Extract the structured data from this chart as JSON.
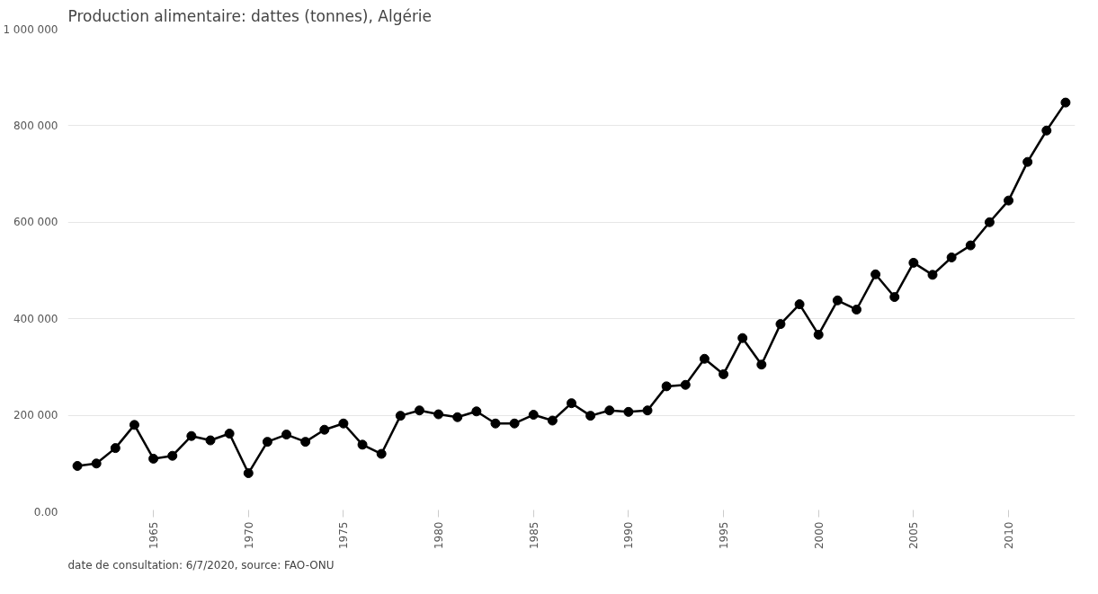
{
  "chart_data": {
    "type": "line",
    "title": "Production alimentaire: dattes (tonnes), Algérie",
    "x": [
      1961,
      1962,
      1963,
      1964,
      1965,
      1966,
      1967,
      1968,
      1969,
      1970,
      1971,
      1972,
      1973,
      1974,
      1975,
      1976,
      1977,
      1978,
      1979,
      1980,
      1981,
      1982,
      1983,
      1984,
      1985,
      1986,
      1987,
      1988,
      1989,
      1990,
      1991,
      1992,
      1993,
      1994,
      1995,
      1996,
      1997,
      1998,
      1999,
      2000,
      2001,
      2002,
      2003,
      2004,
      2005,
      2006,
      2007,
      2008,
      2009,
      2010,
      2011,
      2012,
      2013
    ],
    "series": [
      {
        "color": "#000000",
        "values": [
          95000,
          100000,
          132000,
          180000,
          110000,
          116000,
          157000,
          148000,
          162000,
          80000,
          145000,
          160000,
          145000,
          170000,
          183000,
          139000,
          120000,
          199000,
          210000,
          202000,
          196000,
          208000,
          183000,
          183000,
          201000,
          189000,
          225000,
          199000,
          210000,
          207000,
          210000,
          260000,
          263000,
          317000,
          285000,
          360000,
          305000,
          389000,
          430000,
          367000,
          438000,
          419000,
          492000,
          445000,
          516000,
          491000,
          527000,
          552000,
          600000,
          645000,
          725000,
          790000,
          848000
        ]
      }
    ],
    "xlim": [
      1960.5,
      2013.5
    ],
    "xticks": [
      1965,
      1970,
      1975,
      1980,
      1985,
      1990,
      1995,
      2000,
      2005,
      2010
    ],
    "ylim": [
      0,
      1000000
    ],
    "yticks": [
      {
        "value": 0,
        "label": "0.00"
      },
      {
        "value": 200000,
        "label": "200 000"
      },
      {
        "value": 400000,
        "label": "400 000"
      },
      {
        "value": 600000,
        "label": "600 000"
      },
      {
        "value": 800000,
        "label": "800 000"
      },
      {
        "value": 1000000,
        "label": "1 000 000"
      }
    ],
    "grid": "y",
    "marker": "circle",
    "line_style": "solid",
    "annotations": [
      "date de consultation: 6/7/2020, source: FAO-ONU"
    ]
  }
}
